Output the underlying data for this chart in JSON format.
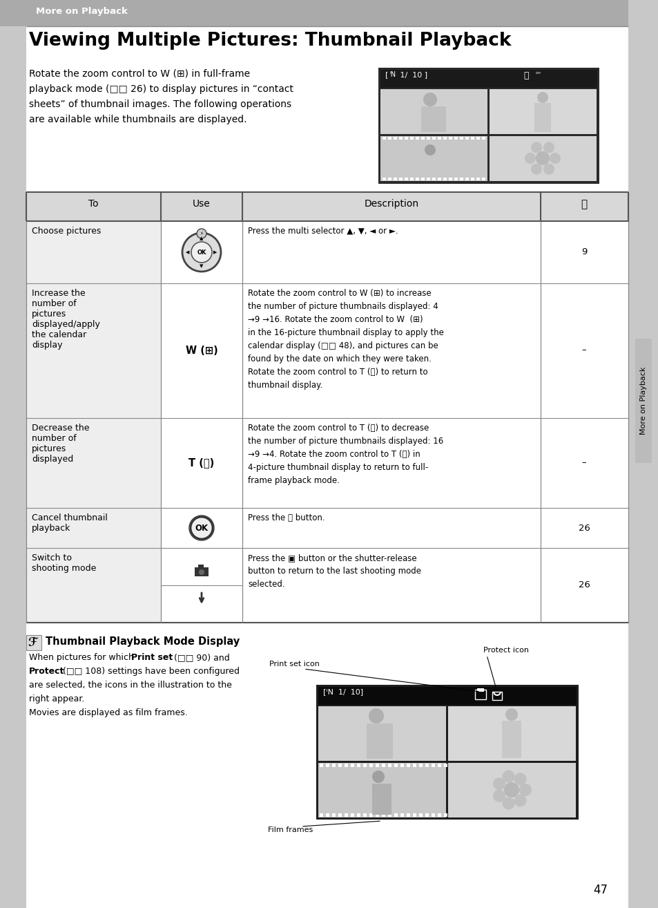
{
  "page_bg": "#c8c8c8",
  "header_bg": "#aaaaaa",
  "header_text": "More on Playback",
  "title": "Viewing Multiple Pictures: Thumbnail Playback",
  "sidebar_text": "More on Playback",
  "page_number": "47",
  "label_print_set": "Print set icon",
  "label_protect": "Protect icon",
  "label_film": "Film frames",
  "intro_lines": [
    "Rotate the zoom control to W (⊞) in full-frame",
    "playback mode (□□ 26) to display pictures in “contact",
    "sheets” of thumbnail images. The following operations",
    "are available while thumbnails are displayed."
  ],
  "note_title": "Thumbnail Playback Mode Display",
  "note_lines": [
    "When pictures for which Print set (□□ 90) and",
    "Protect (□□ 108) settings have been configured",
    "are selected, the icons in the illustration to the",
    "right appear.",
    "Movies are displayed as film frames."
  ]
}
